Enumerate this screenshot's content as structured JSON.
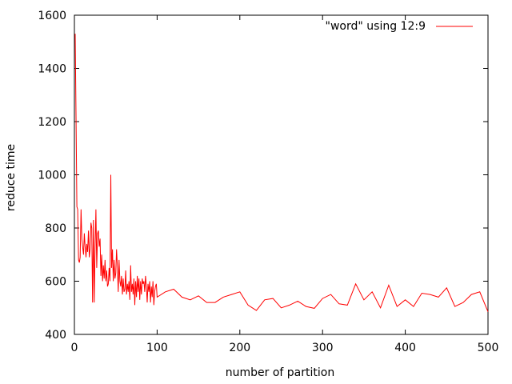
{
  "chart_data": {
    "type": "line",
    "title": "",
    "xlabel": "number of partition",
    "ylabel": "reduce time",
    "xlim": [
      0,
      500
    ],
    "ylim": [
      400,
      1600
    ],
    "xticks": [
      0,
      100,
      200,
      300,
      400,
      500
    ],
    "yticks": [
      400,
      600,
      800,
      1000,
      1200,
      1400,
      1600
    ],
    "grid": false,
    "legend_position": "top-right",
    "series": [
      {
        "name": "\"word\" using 12:9",
        "color": "#ff0000",
        "x": [
          1,
          2,
          3,
          4,
          5,
          6,
          7,
          8,
          9,
          10,
          11,
          12,
          13,
          14,
          15,
          16,
          17,
          18,
          19,
          20,
          21,
          22,
          23,
          24,
          25,
          26,
          27,
          28,
          29,
          30,
          31,
          32,
          33,
          34,
          35,
          36,
          37,
          38,
          39,
          40,
          41,
          42,
          43,
          44,
          45,
          46,
          47,
          48,
          49,
          50,
          51,
          52,
          53,
          54,
          55,
          56,
          57,
          58,
          59,
          60,
          61,
          62,
          63,
          64,
          65,
          66,
          67,
          68,
          69,
          70,
          71,
          72,
          73,
          74,
          75,
          76,
          77,
          78,
          79,
          80,
          81,
          82,
          83,
          84,
          85,
          86,
          87,
          88,
          89,
          90,
          91,
          92,
          93,
          94,
          95,
          96,
          97,
          98,
          99,
          100,
          110,
          120,
          130,
          140,
          150,
          160,
          170,
          180,
          190,
          200,
          210,
          220,
          230,
          240,
          250,
          260,
          270,
          280,
          290,
          300,
          310,
          320,
          330,
          340,
          350,
          360,
          370,
          380,
          390,
          400,
          410,
          420,
          430,
          440,
          450,
          460,
          470,
          480,
          490,
          500
        ],
        "y": [
          1530,
          1200,
          880,
          870,
          680,
          670,
          690,
          870,
          760,
          730,
          700,
          780,
          730,
          690,
          740,
          710,
          790,
          690,
          720,
          820,
          800,
          520,
          830,
          520,
          720,
          870,
          650,
          780,
          790,
          730,
          760,
          620,
          700,
          600,
          660,
          610,
          680,
          600,
          640,
          580,
          590,
          650,
          600,
          1000,
          650,
          720,
          600,
          680,
          610,
          630,
          720,
          650,
          560,
          680,
          600,
          580,
          620,
          550,
          610,
          560,
          570,
          640,
          550,
          590,
          560,
          600,
          530,
          660,
          560,
          590,
          550,
          610,
          510,
          600,
          540,
          620,
          560,
          610,
          530,
          600,
          550,
          610,
          590,
          600,
          560,
          620,
          580,
          520,
          590,
          560,
          600,
          520,
          580,
          540,
          600,
          510,
          560,
          580,
          590,
          540,
          560,
          570,
          540,
          530,
          545,
          520,
          520,
          540,
          550,
          560,
          510,
          490,
          530,
          535,
          500,
          510,
          525,
          505,
          498,
          535,
          550,
          515,
          510,
          590,
          530,
          560,
          500,
          585,
          505,
          530,
          505,
          555,
          550,
          540,
          575,
          505,
          520,
          550,
          560,
          485
        ]
      }
    ]
  }
}
